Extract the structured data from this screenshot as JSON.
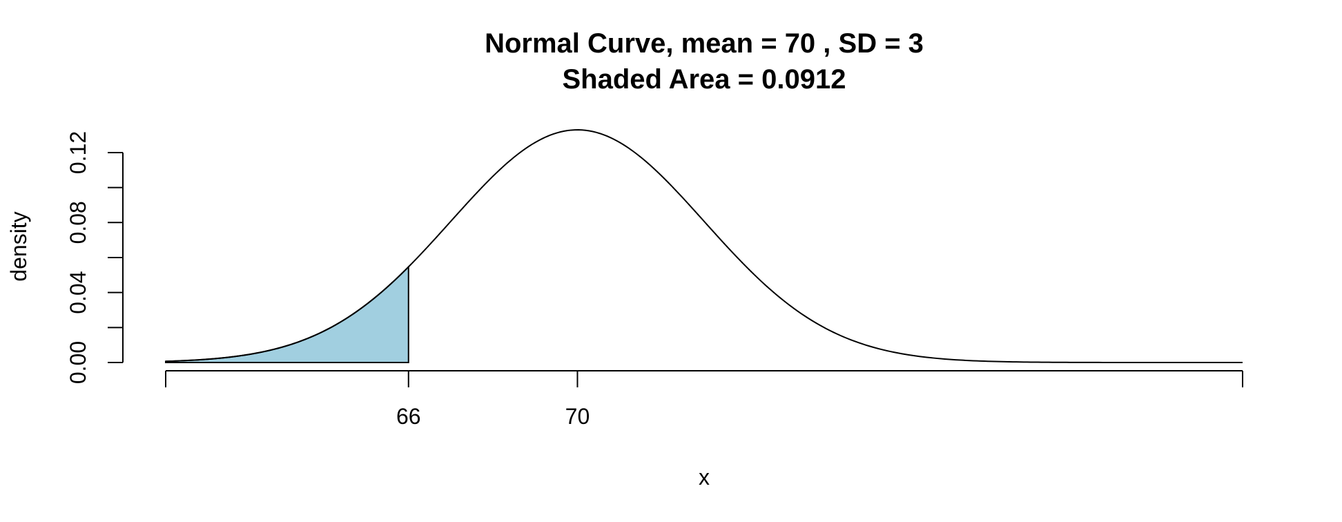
{
  "chart_data": {
    "type": "area",
    "title": "Normal Curve, mean =  70 , SD =  3",
    "subtitle": "Shaded Area =  0.0912",
    "xlabel": "x",
    "ylabel": "density",
    "distribution": {
      "mean": 70,
      "sd": 3
    },
    "xlim": [
      60.25,
      85.75
    ],
    "ylim": [
      0,
      0.133
    ],
    "shaded_region": {
      "from": 60.25,
      "to": 66,
      "area": 0.0912
    },
    "x_ticks": [
      66,
      70
    ],
    "x_tick_labels": [
      "66",
      "70"
    ],
    "y_ticks": [
      0,
      0.02,
      0.04,
      0.06,
      0.08,
      0.1,
      0.12
    ],
    "y_tick_labels": [
      "0.00",
      "",
      "0.04",
      "",
      "0.08",
      "",
      "0.12"
    ],
    "grid": false,
    "colors": {
      "shade": "#a1cfe0",
      "line": "#000000"
    }
  }
}
